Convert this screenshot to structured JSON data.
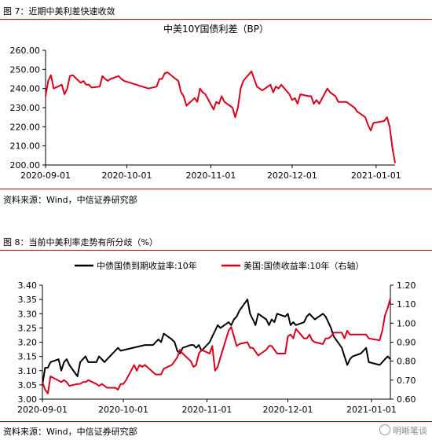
{
  "figures": [
    {
      "caption": "图 7：近期中美利差快速收敛",
      "source": "资料来源：Wind，中信证券研究部"
    },
    {
      "caption": "图 8：当前中美利率走势有所分歧（%）",
      "source": "资料来源：Wind，中信证券研究部"
    }
  ],
  "watermark": "明晰笔谈",
  "colors": {
    "red": "#d9001b",
    "black": "#000000",
    "rule": "#c00000"
  },
  "chart_data": [
    {
      "type": "line",
      "title": "中美10Y国债利差（BP）",
      "x_ticks": [
        "2020-09-01",
        "2020-10-01",
        "2020-11-01",
        "2020-12-01",
        "2021-01-01"
      ],
      "ylim": [
        200,
        260
      ],
      "y_ticks": [
        "200.00",
        "210.00",
        "220.00",
        "230.00",
        "240.00",
        "250.00",
        "260.00"
      ],
      "grid": false,
      "series": [
        {
          "color": "#d9001b",
          "x": [
            "2020-09-01",
            "2020-09-02",
            "2020-09-03",
            "2020-09-04",
            "2020-09-07",
            "2020-09-08",
            "2020-09-09",
            "2020-09-10",
            "2020-09-11",
            "2020-09-14",
            "2020-09-15",
            "2020-09-16",
            "2020-09-17",
            "2020-09-18",
            "2020-09-21",
            "2020-09-22",
            "2020-09-23",
            "2020-09-24",
            "2020-09-25",
            "2020-09-28",
            "2020-09-29",
            "2020-09-30",
            "2020-10-09",
            "2020-10-12",
            "2020-10-13",
            "2020-10-14",
            "2020-10-15",
            "2020-10-16",
            "2020-10-19",
            "2020-10-20",
            "2020-10-21",
            "2020-10-22",
            "2020-10-23",
            "2020-10-26",
            "2020-10-27",
            "2020-10-28",
            "2020-10-29",
            "2020-10-30",
            "2020-11-02",
            "2020-11-03",
            "2020-11-04",
            "2020-11-05",
            "2020-11-06",
            "2020-11-09",
            "2020-11-10",
            "2020-11-11",
            "2020-11-12",
            "2020-11-13",
            "2020-11-16",
            "2020-11-17",
            "2020-11-18",
            "2020-11-19",
            "2020-11-20",
            "2020-11-23",
            "2020-11-24",
            "2020-11-25",
            "2020-11-26",
            "2020-11-27",
            "2020-11-30",
            "2020-12-01",
            "2020-12-02",
            "2020-12-03",
            "2020-12-04",
            "2020-12-07",
            "2020-12-08",
            "2020-12-09",
            "2020-12-10",
            "2020-12-11",
            "2020-12-14",
            "2020-12-15",
            "2020-12-16",
            "2020-12-17",
            "2020-12-18",
            "2020-12-21",
            "2020-12-22",
            "2020-12-23",
            "2020-12-24",
            "2020-12-25",
            "2020-12-28",
            "2020-12-29",
            "2020-12-30",
            "2020-12-31",
            "2021-01-04",
            "2021-01-05",
            "2021-01-06",
            "2021-01-07",
            "2021-01-08"
          ],
          "values": [
            236,
            244,
            247,
            240,
            242,
            237,
            240,
            246.5,
            247,
            243,
            244,
            242,
            242,
            240.5,
            241,
            246.5,
            245,
            244,
            245,
            246.5,
            245,
            244,
            240,
            241,
            245,
            245,
            248,
            248.5,
            245,
            244,
            238,
            236,
            231,
            235,
            233,
            240,
            238,
            237,
            229,
            233,
            232,
            236,
            233,
            230,
            225,
            230,
            240,
            244,
            249,
            245,
            241,
            240,
            239,
            242,
            238,
            241,
            240,
            242,
            237,
            234,
            235,
            232,
            237,
            236,
            236,
            232,
            234,
            232,
            240,
            238,
            237,
            236,
            233,
            233,
            232,
            231,
            230,
            228,
            225,
            221,
            218,
            222,
            223,
            225,
            220,
            209,
            201
          ]
        }
      ]
    },
    {
      "type": "line",
      "x_ticks": [
        "2020-09-01",
        "2020-10-01",
        "2020-11-01",
        "2020-12-01",
        "2021-01-01"
      ],
      "y_left": {
        "ylim": [
          3.0,
          3.4
        ],
        "ticks": [
          "3.00",
          "3.05",
          "3.10",
          "3.15",
          "3.20",
          "3.25",
          "3.30",
          "3.35",
          "3.40"
        ]
      },
      "y_right": {
        "ylim": [
          0.6,
          1.2
        ],
        "ticks": [
          "0.60",
          "0.70",
          "0.80",
          "0.90",
          "1.00",
          "1.10",
          "1.20"
        ]
      },
      "legend_position": "top",
      "grid": false,
      "series": [
        {
          "name": "中债国债到期收益率:10年",
          "axis": "left",
          "color": "#000000",
          "x": [
            "2020-09-01",
            "2020-09-02",
            "2020-09-03",
            "2020-09-04",
            "2020-09-07",
            "2020-09-08",
            "2020-09-09",
            "2020-09-10",
            "2020-09-11",
            "2020-09-14",
            "2020-09-15",
            "2020-09-16",
            "2020-09-17",
            "2020-09-18",
            "2020-09-21",
            "2020-09-22",
            "2020-09-23",
            "2020-09-24",
            "2020-09-25",
            "2020-09-28",
            "2020-09-29",
            "2020-09-30",
            "2020-10-09",
            "2020-10-12",
            "2020-10-13",
            "2020-10-14",
            "2020-10-15",
            "2020-10-16",
            "2020-10-19",
            "2020-10-20",
            "2020-10-21",
            "2020-10-22",
            "2020-10-23",
            "2020-10-26",
            "2020-10-27",
            "2020-10-28",
            "2020-10-29",
            "2020-10-30",
            "2020-11-02",
            "2020-11-03",
            "2020-11-04",
            "2020-11-05",
            "2020-11-06",
            "2020-11-09",
            "2020-11-10",
            "2020-11-11",
            "2020-11-12",
            "2020-11-13",
            "2020-11-16",
            "2020-11-17",
            "2020-11-18",
            "2020-11-19",
            "2020-11-20",
            "2020-11-23",
            "2020-11-24",
            "2020-11-25",
            "2020-11-26",
            "2020-11-27",
            "2020-11-30",
            "2020-12-01",
            "2020-12-02",
            "2020-12-03",
            "2020-12-04",
            "2020-12-07",
            "2020-12-08",
            "2020-12-09",
            "2020-12-10",
            "2020-12-11",
            "2020-12-14",
            "2020-12-15",
            "2020-12-16",
            "2020-12-17",
            "2020-12-18",
            "2020-12-21",
            "2020-12-22",
            "2020-12-23",
            "2020-12-24",
            "2020-12-25",
            "2020-12-28",
            "2020-12-29",
            "2020-12-30",
            "2020-12-31",
            "2021-01-04",
            "2021-01-05",
            "2021-01-06",
            "2021-01-07",
            "2021-01-08"
          ],
          "values": [
            3.05,
            3.11,
            3.11,
            3.13,
            3.14,
            3.1,
            3.13,
            3.14,
            3.12,
            3.08,
            3.13,
            3.14,
            3.15,
            3.13,
            3.13,
            3.15,
            3.14,
            3.13,
            3.14,
            3.17,
            3.18,
            3.17,
            3.19,
            3.19,
            3.2,
            3.21,
            3.2,
            3.23,
            3.21,
            3.2,
            3.17,
            3.16,
            3.18,
            3.19,
            3.19,
            3.18,
            3.19,
            3.17,
            3.2,
            3.22,
            3.24,
            3.26,
            3.25,
            3.27,
            3.26,
            3.28,
            3.29,
            3.31,
            3.35,
            3.3,
            3.28,
            3.26,
            3.3,
            3.28,
            3.26,
            3.28,
            3.27,
            3.3,
            3.29,
            3.3,
            3.26,
            3.27,
            3.26,
            3.27,
            3.29,
            3.3,
            3.29,
            3.28,
            3.3,
            3.29,
            3.27,
            3.25,
            3.22,
            3.18,
            3.15,
            3.12,
            3.14,
            3.15,
            3.16,
            3.17,
            3.18,
            3.13,
            3.12,
            3.13,
            3.14,
            3.15,
            3.14
          ]
        },
        {
          "name": "美国:国债收益率:10年（右轴）",
          "axis": "right",
          "color": "#d9001b",
          "x": [
            "2020-09-01",
            "2020-09-02",
            "2020-09-03",
            "2020-09-04",
            "2020-09-08",
            "2020-09-09",
            "2020-09-10",
            "2020-09-11",
            "2020-09-14",
            "2020-09-15",
            "2020-09-16",
            "2020-09-17",
            "2020-09-18",
            "2020-09-21",
            "2020-09-22",
            "2020-09-23",
            "2020-09-24",
            "2020-09-25",
            "2020-09-28",
            "2020-09-29",
            "2020-09-30",
            "2020-10-01",
            "2020-10-02",
            "2020-10-05",
            "2020-10-06",
            "2020-10-07",
            "2020-10-08",
            "2020-10-09",
            "2020-10-13",
            "2020-10-14",
            "2020-10-15",
            "2020-10-16",
            "2020-10-19",
            "2020-10-20",
            "2020-10-21",
            "2020-10-22",
            "2020-10-23",
            "2020-10-26",
            "2020-10-27",
            "2020-10-28",
            "2020-10-29",
            "2020-10-30",
            "2020-11-02",
            "2020-11-03",
            "2020-11-04",
            "2020-11-05",
            "2020-11-06",
            "2020-11-09",
            "2020-11-10",
            "2020-11-12",
            "2020-11-13",
            "2020-11-16",
            "2020-11-17",
            "2020-11-18",
            "2020-11-19",
            "2020-11-20",
            "2020-11-23",
            "2020-11-24",
            "2020-11-25",
            "2020-11-27",
            "2020-11-30",
            "2020-12-01",
            "2020-12-02",
            "2020-12-03",
            "2020-12-04",
            "2020-12-07",
            "2020-12-08",
            "2020-12-09",
            "2020-12-10",
            "2020-12-11",
            "2020-12-14",
            "2020-12-15",
            "2020-12-16",
            "2020-12-17",
            "2020-12-18",
            "2020-12-21",
            "2020-12-22",
            "2020-12-23",
            "2020-12-24",
            "2020-12-28",
            "2020-12-29",
            "2020-12-30",
            "2020-12-31",
            "2021-01-04",
            "2021-01-05",
            "2021-01-06",
            "2021-01-07",
            "2021-01-08"
          ],
          "values": [
            0.69,
            0.65,
            0.63,
            0.72,
            0.69,
            0.7,
            0.69,
            0.67,
            0.68,
            0.68,
            0.69,
            0.69,
            0.7,
            0.68,
            0.67,
            0.68,
            0.67,
            0.66,
            0.66,
            0.65,
            0.68,
            0.68,
            0.7,
            0.78,
            0.75,
            0.78,
            0.77,
            0.78,
            0.73,
            0.73,
            0.73,
            0.76,
            0.78,
            0.8,
            0.82,
            0.86,
            0.84,
            0.8,
            0.77,
            0.78,
            0.84,
            0.86,
            0.84,
            0.88,
            0.75,
            0.77,
            0.82,
            0.96,
            0.98,
            0.88,
            0.89,
            0.9,
            0.87,
            0.87,
            0.85,
            0.83,
            0.86,
            0.88,
            0.88,
            0.84,
            0.84,
            0.93,
            0.94,
            0.92,
            0.97,
            0.92,
            0.92,
            0.94,
            0.91,
            0.9,
            0.89,
            0.92,
            0.92,
            0.93,
            0.95,
            0.95,
            0.92,
            0.96,
            0.94,
            0.94,
            0.94,
            0.94,
            0.92,
            0.91,
            0.96,
            1.04,
            1.08,
            1.13
          ]
        }
      ]
    }
  ]
}
